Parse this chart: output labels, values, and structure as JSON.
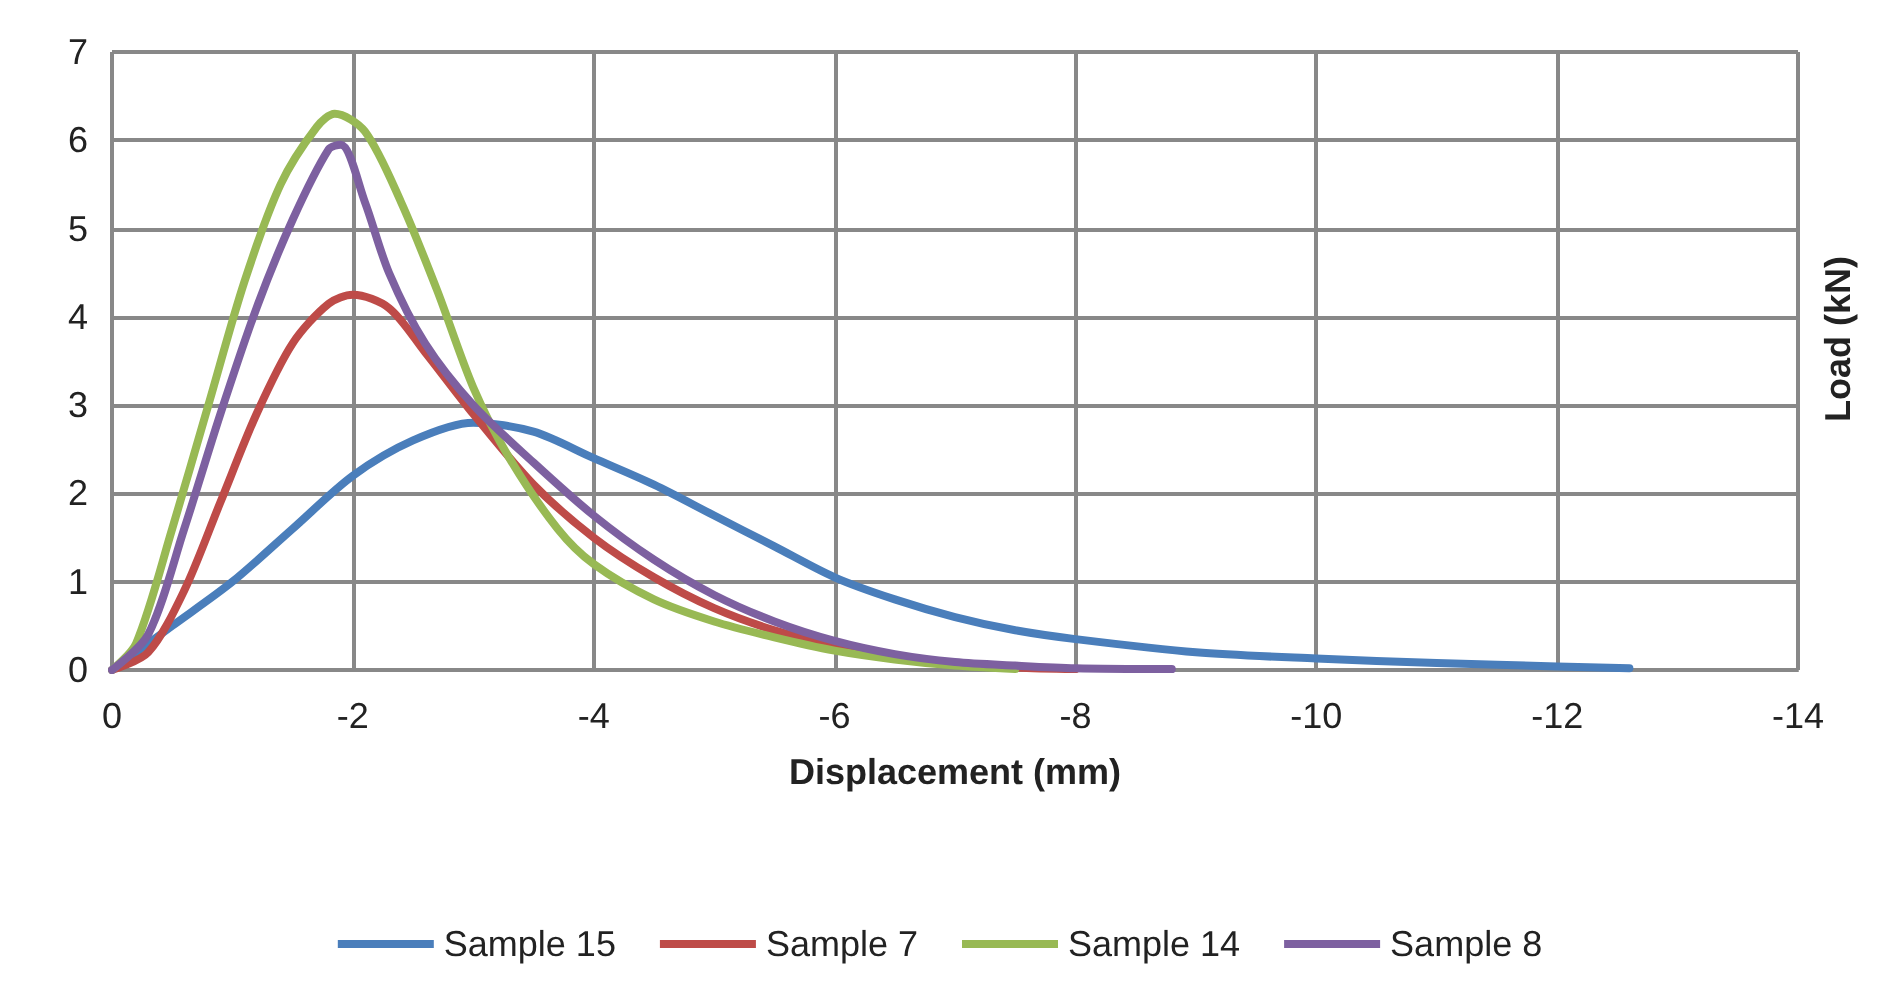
{
  "chart_data": {
    "type": "line",
    "xlabel": "Displacement (mm)",
    "ylabel": "Load (kN)",
    "xlim": [
      0,
      -14
    ],
    "xticks": [
      0,
      -2,
      -4,
      -6,
      -8,
      -10,
      -12,
      -14
    ],
    "ylim": [
      0,
      7
    ],
    "yticks": [
      0,
      1,
      2,
      3,
      4,
      5,
      6,
      7
    ],
    "grid": true,
    "legend": "bottom",
    "marker": "none",
    "line_style": "solid",
    "series": [
      {
        "name": "Sample 15",
        "color": "#4a7ebb",
        "x": [
          0,
          -0.5,
          -1,
          -1.5,
          -2,
          -2.5,
          -3,
          -3.5,
          -4,
          -4.5,
          -5,
          -5.5,
          -6,
          -6.5,
          -7,
          -7.5,
          -8,
          -9,
          -10,
          -11,
          -12,
          -12.6
        ],
        "values": [
          0,
          0.5,
          1.0,
          1.6,
          2.2,
          2.6,
          2.8,
          2.7,
          2.4,
          2.1,
          1.75,
          1.4,
          1.05,
          0.8,
          0.6,
          0.45,
          0.35,
          0.2,
          0.13,
          0.08,
          0.04,
          0.02
        ]
      },
      {
        "name": "Sample 7",
        "color": "#be4b48",
        "x": [
          0,
          -0.3,
          -0.6,
          -0.9,
          -1.2,
          -1.5,
          -1.8,
          -2,
          -2.3,
          -2.6,
          -3,
          -3.5,
          -4,
          -4.5,
          -5,
          -5.5,
          -6,
          -6.5,
          -7,
          -7.5,
          -8
        ],
        "values": [
          0,
          0.2,
          0.9,
          1.9,
          2.9,
          3.7,
          4.15,
          4.25,
          4.1,
          3.6,
          2.9,
          2.1,
          1.5,
          1.05,
          0.7,
          0.45,
          0.28,
          0.15,
          0.08,
          0.03,
          0.01
        ]
      },
      {
        "name": "Sample 14",
        "color": "#98b954",
        "x": [
          0,
          -0.2,
          -0.5,
          -0.8,
          -1.1,
          -1.4,
          -1.7,
          -1.85,
          -2.1,
          -2.4,
          -2.7,
          -3,
          -3.3,
          -3.7,
          -4,
          -4.5,
          -5,
          -5.5,
          -6,
          -6.5,
          -7,
          -7.5
        ],
        "values": [
          0,
          0.3,
          1.6,
          3.0,
          4.4,
          5.5,
          6.15,
          6.3,
          6.1,
          5.3,
          4.3,
          3.2,
          2.4,
          1.6,
          1.2,
          0.8,
          0.55,
          0.37,
          0.22,
          0.12,
          0.05,
          0.01
        ]
      },
      {
        "name": "Sample 8",
        "color": "#7d60a0",
        "x": [
          0,
          -0.3,
          -0.6,
          -0.9,
          -1.2,
          -1.5,
          -1.8,
          -1.9,
          -2.1,
          -2.3,
          -2.6,
          -3,
          -3.5,
          -4,
          -4.5,
          -5,
          -5.5,
          -6,
          -6.5,
          -7,
          -7.5,
          -8,
          -8.8
        ],
        "values": [
          0,
          0.4,
          1.6,
          2.9,
          4.1,
          5.1,
          5.9,
          5.95,
          5.3,
          4.5,
          3.7,
          3.0,
          2.35,
          1.75,
          1.25,
          0.85,
          0.55,
          0.33,
          0.18,
          0.09,
          0.05,
          0.02,
          0.01
        ]
      }
    ]
  }
}
